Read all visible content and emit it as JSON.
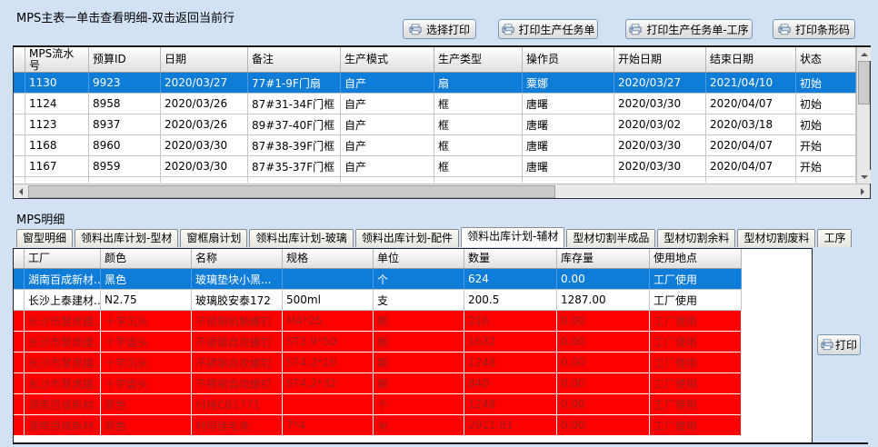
{
  "top_panel": {
    "title": "MPS主表一单击查看明细-双击返回当前行",
    "buttons": [
      {
        "name": "select-print",
        "icon": "printer-icon",
        "label": "选择打印"
      },
      {
        "name": "print-production-order",
        "icon": "printer-icon",
        "label": "打印生产任务单"
      },
      {
        "name": "print-production-order-process",
        "icon": "printer-icon",
        "label": "打印生产任务单-工序"
      },
      {
        "name": "print-barcode",
        "icon": "printer-icon",
        "label": "打印条形码"
      }
    ],
    "table": {
      "columns": [
        "MPS流水号",
        "预算ID",
        "日期",
        "备注",
        "生产模式",
        "生产类型",
        "操作员",
        "开始日期",
        "结束日期",
        "状态"
      ],
      "rows": [
        {
          "style": "selected",
          "cells": [
            "1130",
            "9923",
            "2020/03/27",
            "77#1-9F门扇",
            "自产",
            "扇",
            "粟娜",
            "2020/03/27",
            "2021/04/10",
            "初始"
          ]
        },
        {
          "style": "normal",
          "cells": [
            "1124",
            "8958",
            "2020/03/26",
            "87#31-34F门框",
            "自产",
            "框",
            "唐曙",
            "2020/03/30",
            "2020/04/07",
            "初始"
          ]
        },
        {
          "style": "normal",
          "cells": [
            "1123",
            "8937",
            "2020/03/26",
            "89#37-40F门框",
            "自产",
            "框",
            "唐曙",
            "2020/03/02",
            "2020/03/18",
            "初始"
          ]
        },
        {
          "style": "normal",
          "cells": [
            "1168",
            "8960",
            "2020/03/30",
            "87#38-39F门框",
            "自产",
            "框",
            "唐曙",
            "2020/03/30",
            "2020/04/07",
            "开始"
          ]
        },
        {
          "style": "normal",
          "cells": [
            "1167",
            "8959",
            "2020/03/30",
            "87#35-37F门框",
            "自产",
            "框",
            "唐曙",
            "2020/03/30",
            "2020/04/07",
            "开始"
          ]
        },
        {
          "style": "partial",
          "cells": [
            "",
            "",
            "",
            "",
            "",
            "",
            "",
            "",
            "",
            ""
          ]
        }
      ]
    }
  },
  "bottom_panel": {
    "title": "MPS明细",
    "tabs": [
      "窗型明细",
      "领料出库计划-型材",
      "窗框扇计划",
      "领料出库计划-玻璃",
      "领料出库计划-配件",
      "领料出库计划-辅材",
      "型材切割半成品",
      "型材切割余料",
      "型材切割废料",
      "工序"
    ],
    "active_tab": "领料出库计划-辅材",
    "print_button_label": "打印",
    "table": {
      "columns": [
        "工厂",
        "颜色",
        "名称",
        "规格",
        "单位",
        "数量",
        "库存量",
        "使用地点"
      ],
      "rows": [
        {
          "style": "selected",
          "cells": [
            "湖南百成新材...",
            "黑色",
            "玻璃垫块小黑...",
            "",
            "个",
            "624",
            "0.00",
            "工厂使用"
          ]
        },
        {
          "style": "normal",
          "cells": [
            "长沙上泰建材...",
            "N2.75",
            "玻璃胶安泰172",
            "500ml",
            "支",
            "200.5",
            "1287.00",
            "工厂使用"
          ]
        },
        {
          "style": "alert",
          "cells": [
            "长沙市慧虎建...",
            "十字沉头",
            "不锈钢机制螺钉",
            "M4*25",
            "颗",
            "216",
            "0.00",
            "工厂使用"
          ]
        },
        {
          "style": "alert",
          "cells": [
            "长沙市慧虎建...",
            "十字盘头",
            "不锈钢自攻螺钉",
            "ST3.9*50",
            "颗",
            "1632",
            "0.00",
            "工厂使用"
          ]
        },
        {
          "style": "alert",
          "cells": [
            "长沙市慧虎建...",
            "十字沉头",
            "不锈钢自攻螺钉",
            "ST4.2*16",
            "颗",
            "1248",
            "0.00",
            "工厂使用"
          ]
        },
        {
          "style": "alert",
          "cells": [
            "长沙市慧虎建...",
            "十字盘头",
            "不锈钢自攻螺钉",
            "ST4.2*32",
            "颗",
            "840",
            "0.00",
            "工厂使用"
          ]
        },
        {
          "style": "alert",
          "cells": [
            "湖南百成新材...",
            "原色",
            "付档CB1771",
            "",
            "个",
            "1248",
            "0.00",
            "工厂使用"
          ]
        },
        {
          "style": "alert",
          "cells": [
            "湖南百成新材...",
            "原色",
            "利得佳毛条",
            "7*4",
            "米",
            "2911.81",
            "0.00",
            "工厂使用"
          ]
        }
      ]
    }
  },
  "colors": {
    "window_bg": "#d2e2f4",
    "selection_blue": "#0f7cd8",
    "alert_red": "#ff0000",
    "alert_text": "#9a1b1b"
  }
}
